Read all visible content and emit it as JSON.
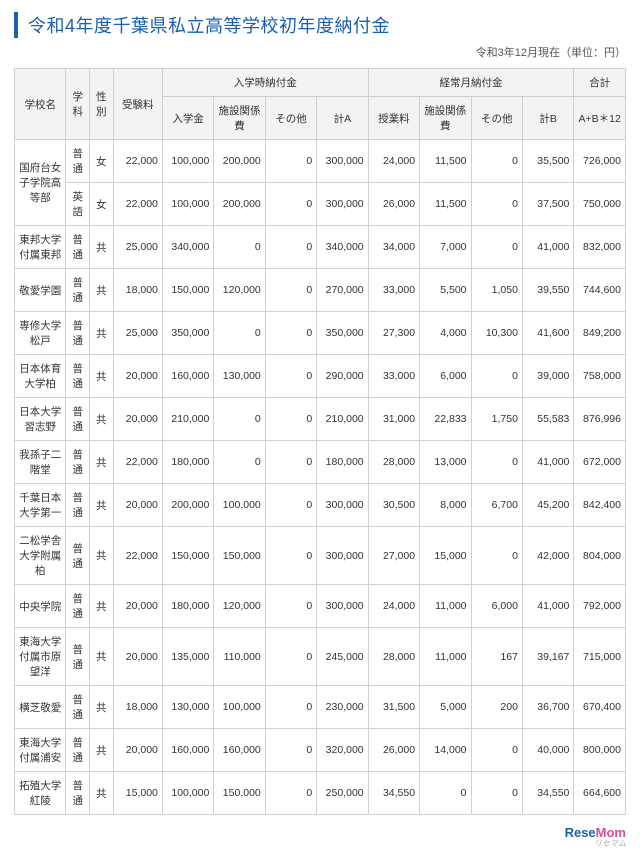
{
  "title": "令和4年度千葉県私立高等学校初年度納付金",
  "subtitle": "令和3年12月現在（単位：円）",
  "columns": {
    "school": "学校名",
    "dept": "学科",
    "sex": "性別",
    "exam_fee": "受験料",
    "entry_group": "入学時納付金",
    "entry_fee": "入学金",
    "facility": "施設関係費",
    "other1": "その他",
    "subA": "計A",
    "monthly_group": "経常月納付金",
    "tuition": "授業料",
    "facility2": "施設関係費",
    "other2": "その他",
    "subB": "計B",
    "total_group": "合計",
    "total": "A+B＊12"
  },
  "rows": [
    {
      "school": "国府台女子学院高等部",
      "dept": "普通",
      "sex": "女",
      "exam": "22,000",
      "ent": "100,000",
      "fac": "200,000",
      "oth1": "0",
      "a": "300,000",
      "tui": "24,000",
      "fac2": "11,500",
      "oth2": "0",
      "b": "35,500",
      "tot": "726,000",
      "rowspan": 2
    },
    {
      "school": "",
      "dept": "英語",
      "sex": "女",
      "exam": "22,000",
      "ent": "100,000",
      "fac": "200,000",
      "oth1": "0",
      "a": "300,000",
      "tui": "26,000",
      "fac2": "11,500",
      "oth2": "0",
      "b": "37,500",
      "tot": "750,000"
    },
    {
      "school": "東邦大学付属東邦",
      "dept": "普通",
      "sex": "共",
      "exam": "25,000",
      "ent": "340,000",
      "fac": "0",
      "oth1": "0",
      "a": "340,000",
      "tui": "34,000",
      "fac2": "7,000",
      "oth2": "0",
      "b": "41,000",
      "tot": "832,000"
    },
    {
      "school": "敬愛学園",
      "dept": "普通",
      "sex": "共",
      "exam": "18,000",
      "ent": "150,000",
      "fac": "120,000",
      "oth1": "0",
      "a": "270,000",
      "tui": "33,000",
      "fac2": "5,500",
      "oth2": "1,050",
      "b": "39,550",
      "tot": "744,600"
    },
    {
      "school": "専修大学松戸",
      "dept": "普通",
      "sex": "共",
      "exam": "25,000",
      "ent": "350,000",
      "fac": "0",
      "oth1": "0",
      "a": "350,000",
      "tui": "27,300",
      "fac2": "4,000",
      "oth2": "10,300",
      "b": "41,600",
      "tot": "849,200"
    },
    {
      "school": "日本体育大学柏",
      "dept": "普通",
      "sex": "共",
      "exam": "20,000",
      "ent": "160,000",
      "fac": "130,000",
      "oth1": "0",
      "a": "290,000",
      "tui": "33,000",
      "fac2": "6,000",
      "oth2": "0",
      "b": "39,000",
      "tot": "758,000"
    },
    {
      "school": "日本大学習志野",
      "dept": "普通",
      "sex": "共",
      "exam": "20,000",
      "ent": "210,000",
      "fac": "0",
      "oth1": "0",
      "a": "210,000",
      "tui": "31,000",
      "fac2": "22,833",
      "oth2": "1,750",
      "b": "55,583",
      "tot": "876,996"
    },
    {
      "school": "我孫子二階堂",
      "dept": "普通",
      "sex": "共",
      "exam": "22,000",
      "ent": "180,000",
      "fac": "0",
      "oth1": "0",
      "a": "180,000",
      "tui": "28,000",
      "fac2": "13,000",
      "oth2": "0",
      "b": "41,000",
      "tot": "672,000"
    },
    {
      "school": "千葉日本大学第一",
      "dept": "普通",
      "sex": "共",
      "exam": "20,000",
      "ent": "200,000",
      "fac": "100,000",
      "oth1": "0",
      "a": "300,000",
      "tui": "30,500",
      "fac2": "8,000",
      "oth2": "6,700",
      "b": "45,200",
      "tot": "842,400"
    },
    {
      "school": "二松学舎大学附属柏",
      "dept": "普通",
      "sex": "共",
      "exam": "22,000",
      "ent": "150,000",
      "fac": "150,000",
      "oth1": "0",
      "a": "300,000",
      "tui": "27,000",
      "fac2": "15,000",
      "oth2": "0",
      "b": "42,000",
      "tot": "804,000"
    },
    {
      "school": "中央学院",
      "dept": "普通",
      "sex": "共",
      "exam": "20,000",
      "ent": "180,000",
      "fac": "120,000",
      "oth1": "0",
      "a": "300,000",
      "tui": "24,000",
      "fac2": "11,000",
      "oth2": "6,000",
      "b": "41,000",
      "tot": "792,000"
    },
    {
      "school": "東海大学付属市原望洋",
      "dept": "普通",
      "sex": "共",
      "exam": "20,000",
      "ent": "135,000",
      "fac": "110,000",
      "oth1": "0",
      "a": "245,000",
      "tui": "28,000",
      "fac2": "11,000",
      "oth2": "167",
      "b": "39,167",
      "tot": "715,000"
    },
    {
      "school": "横芝敬愛",
      "dept": "普通",
      "sex": "共",
      "exam": "18,000",
      "ent": "130,000",
      "fac": "100,000",
      "oth1": "0",
      "a": "230,000",
      "tui": "31,500",
      "fac2": "5,000",
      "oth2": "200",
      "b": "36,700",
      "tot": "670,400"
    },
    {
      "school": "東海大学付属浦安",
      "dept": "普通",
      "sex": "共",
      "exam": "20,000",
      "ent": "160,000",
      "fac": "160,000",
      "oth1": "0",
      "a": "320,000",
      "tui": "26,000",
      "fac2": "14,000",
      "oth2": "0",
      "b": "40,000",
      "tot": "800,000"
    },
    {
      "school": "拓殖大学紅陵",
      "dept": "普通",
      "sex": "共",
      "exam": "15,000",
      "ent": "100,000",
      "fac": "150,000",
      "oth1": "0",
      "a": "250,000",
      "tui": "34,550",
      "fac2": "0",
      "oth2": "0",
      "b": "34,550",
      "tot": "664,600"
    }
  ],
  "footer_brand": "ReseMom",
  "footer_sub": "リセマム"
}
